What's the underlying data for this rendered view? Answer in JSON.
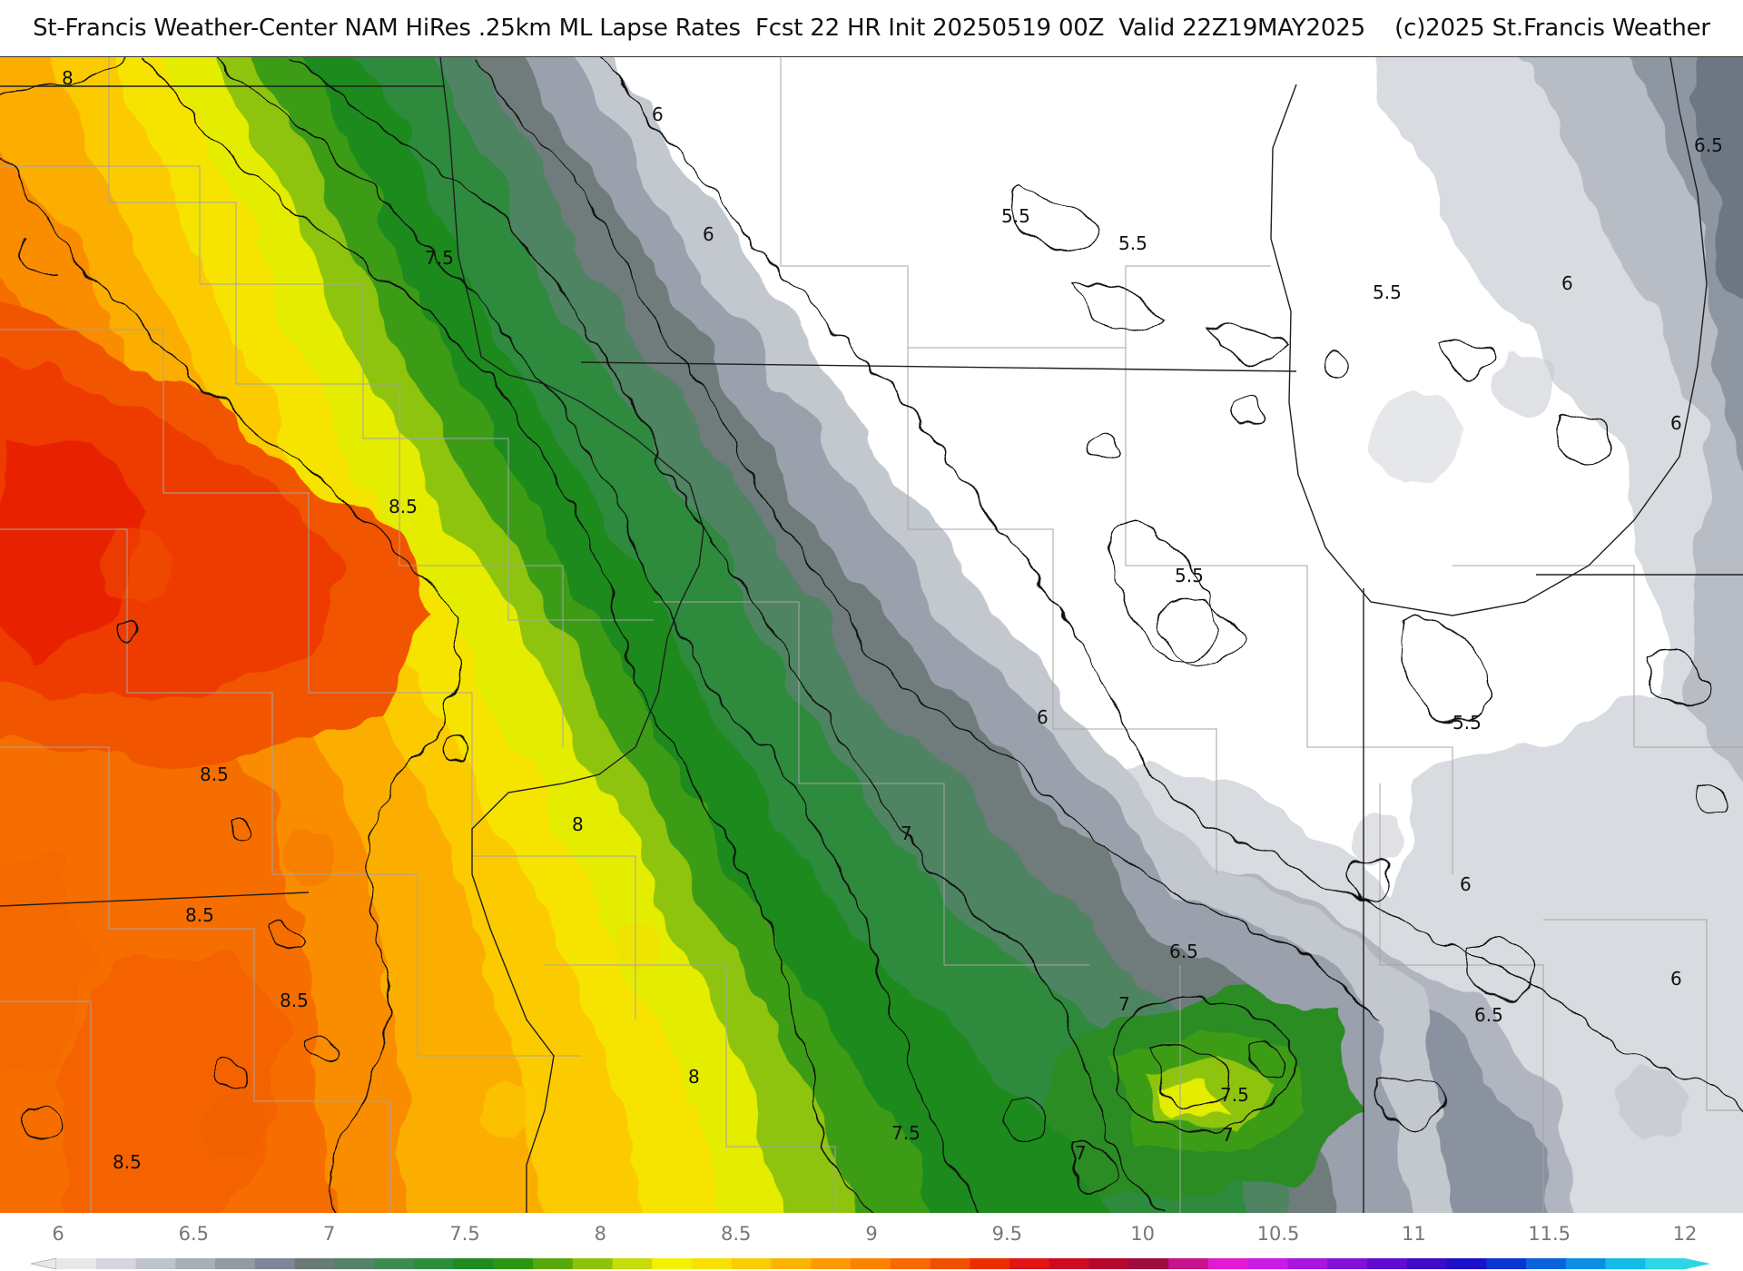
{
  "title": "St-Francis Weather-Center NAM HiRes .25km ML Lapse Rates  Fcst 22 HR Init 20250519 00Z  Valid 22Z19MAY2025    (c)2025 St.Francis Weather",
  "map": {
    "contour_labels": [
      {
        "id": "lbl-8-nw",
        "text": "8"
      },
      {
        "id": "lbl-6-n",
        "text": "6"
      },
      {
        "id": "lbl-7.5-n",
        "text": "7.5"
      },
      {
        "id": "lbl-6-nc",
        "text": "6"
      },
      {
        "id": "lbl-5.5-a",
        "text": "5.5"
      },
      {
        "id": "lbl-5.5-b",
        "text": "5.5"
      },
      {
        "id": "lbl-5.5-c",
        "text": "5.5"
      },
      {
        "id": "lbl-6-ne",
        "text": "6"
      },
      {
        "id": "lbl-6.5-ne",
        "text": "6.5"
      },
      {
        "id": "lbl-6-e",
        "text": "6"
      },
      {
        "id": "lbl-8.5-w",
        "text": "8.5"
      },
      {
        "id": "lbl-5.5-d",
        "text": "5.5"
      },
      {
        "id": "lbl-6-c",
        "text": "6"
      },
      {
        "id": "lbl-5.5-e",
        "text": "5.5"
      },
      {
        "id": "lbl-8.5-sw1",
        "text": "8.5"
      },
      {
        "id": "lbl-8-c",
        "text": "8"
      },
      {
        "id": "lbl-7-c",
        "text": "7"
      },
      {
        "id": "lbl-6-se",
        "text": "6"
      },
      {
        "id": "lbl-8.5-sw2",
        "text": "8.5"
      },
      {
        "id": "lbl-6.5-s",
        "text": "6.5"
      },
      {
        "id": "lbl-6-se2",
        "text": "6"
      },
      {
        "id": "lbl-6.5-se",
        "text": "6.5"
      },
      {
        "id": "lbl-7-s",
        "text": "7"
      },
      {
        "id": "lbl-8.5-sw3",
        "text": "8.5"
      },
      {
        "id": "lbl-8-s",
        "text": "8"
      },
      {
        "id": "lbl-7.5-s1",
        "text": "7.5"
      },
      {
        "id": "lbl-7.5-s2",
        "text": "7.5"
      },
      {
        "id": "lbl-7-s2",
        "text": "7"
      },
      {
        "id": "lbl-7-s3",
        "text": "7"
      },
      {
        "id": "lbl-8.5-sw4",
        "text": "8.5"
      }
    ]
  },
  "legend": {
    "ticks": [
      "6",
      "6.5",
      "7",
      "7.5",
      "8",
      "8.5",
      "9",
      "9.5",
      "10",
      "10.5",
      "11",
      "11.5",
      "12"
    ],
    "min": 6,
    "max": 12,
    "colors": [
      "#e6e8ec",
      "#d3d6dc",
      "#bfc3cb",
      "#a9aeb8",
      "#939aa6",
      "#7d8694",
      "#6a7a78",
      "#55806a",
      "#3f8a52",
      "#2c8c3a",
      "#1f8a22",
      "#2a9414",
      "#58a80c",
      "#8fc20a",
      "#c7dc08",
      "#f2f200",
      "#f8e000",
      "#fbcc00",
      "#fcb400",
      "#fc9a00",
      "#fa8200",
      "#f66a00",
      "#f04e00",
      "#ea2e00",
      "#e01414",
      "#cc0a22",
      "#b4082e",
      "#a00a3c",
      "#c8148c",
      "#e41ad2",
      "#cc1ae6",
      "#a814e0",
      "#8410d8",
      "#600cd0",
      "#3c0cc8",
      "#1c10c8",
      "#0c34d2",
      "#0a62dc",
      "#0c8ee4",
      "#12bce6",
      "#2cd6e4"
    ]
  },
  "colors": {
    "contour": "#111111",
    "border": "#222222",
    "county": "#9a9a9a"
  }
}
